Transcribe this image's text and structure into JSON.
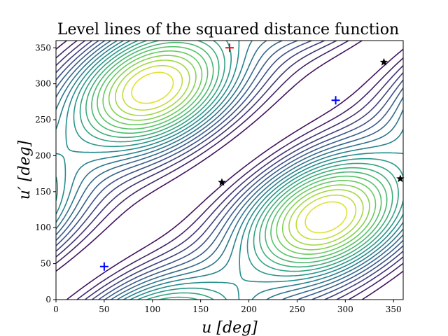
{
  "chart_data": {
    "type": "contour",
    "title": "Level lines of the squared distance function",
    "xlabel": "u [deg]",
    "ylabel": "u′ [deg]",
    "xlim": [
      0,
      360
    ],
    "ylim": [
      0,
      360
    ],
    "xticks": [
      0,
      50,
      100,
      150,
      200,
      250,
      300,
      350
    ],
    "yticks": [
      0,
      50,
      100,
      150,
      200,
      250,
      300,
      350
    ],
    "colormap": "viridis",
    "levels": 20,
    "grid": false,
    "markers": [
      {
        "kind": "plus",
        "color": "#ff0000",
        "x": 180,
        "y": 350
      },
      {
        "kind": "plus",
        "color": "#0000ff",
        "x": 50,
        "y": 46
      },
      {
        "kind": "plus",
        "color": "#0000ff",
        "x": 290,
        "y": 277
      },
      {
        "kind": "star",
        "color": "#000000",
        "x": 172,
        "y": 163
      },
      {
        "kind": "star",
        "color": "#000000",
        "x": 340,
        "y": 330
      },
      {
        "kind": "star",
        "color": "#000000",
        "x": 357,
        "y": 168
      }
    ]
  }
}
